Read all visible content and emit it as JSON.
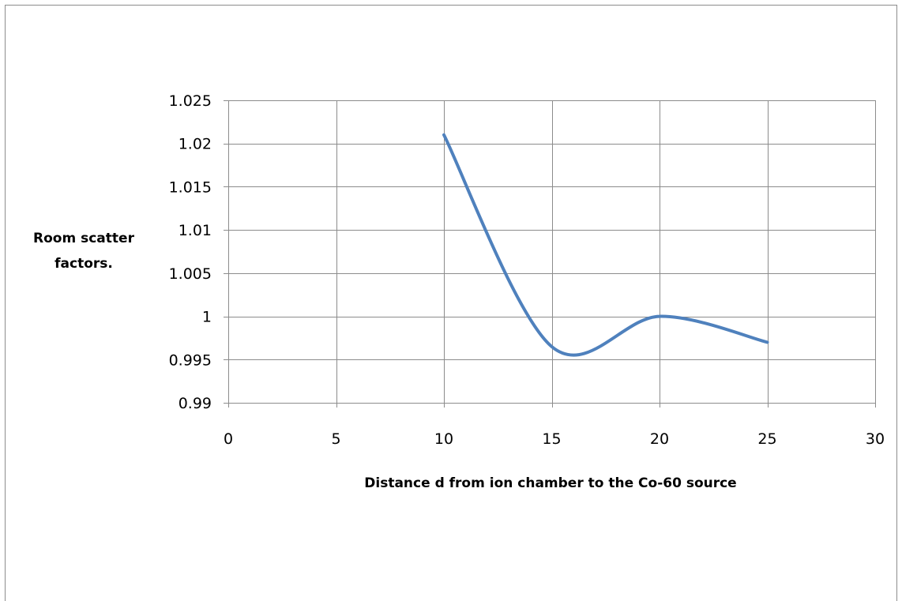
{
  "chart_data": {
    "type": "line",
    "title": "",
    "xlabel": "Distance d from ion chamber to the Co-60 source",
    "ylabel_lines": [
      "Room scatter",
      "factors."
    ],
    "xlim": [
      0,
      30
    ],
    "ylim": [
      0.99,
      1.025
    ],
    "x_ticks": [
      0,
      5,
      10,
      15,
      20,
      25,
      30
    ],
    "y_ticks": [
      0.99,
      0.995,
      1,
      1.005,
      1.01,
      1.015,
      1.02,
      1.025
    ],
    "x_tick_labels": [
      "0",
      "5",
      "10",
      "15",
      "20",
      "25",
      "30"
    ],
    "y_tick_labels": [
      "0.99",
      "0.995",
      "1",
      "1.005",
      "1.01",
      "1.015",
      "1.02",
      "1.025"
    ],
    "grid": true,
    "legend": "none",
    "smooth": true,
    "series": [
      {
        "color": "#4f81bd",
        "x": [
          10,
          15,
          20,
          25
        ],
        "y": [
          1.021,
          0.9965,
          1.0,
          0.997
        ]
      }
    ]
  }
}
